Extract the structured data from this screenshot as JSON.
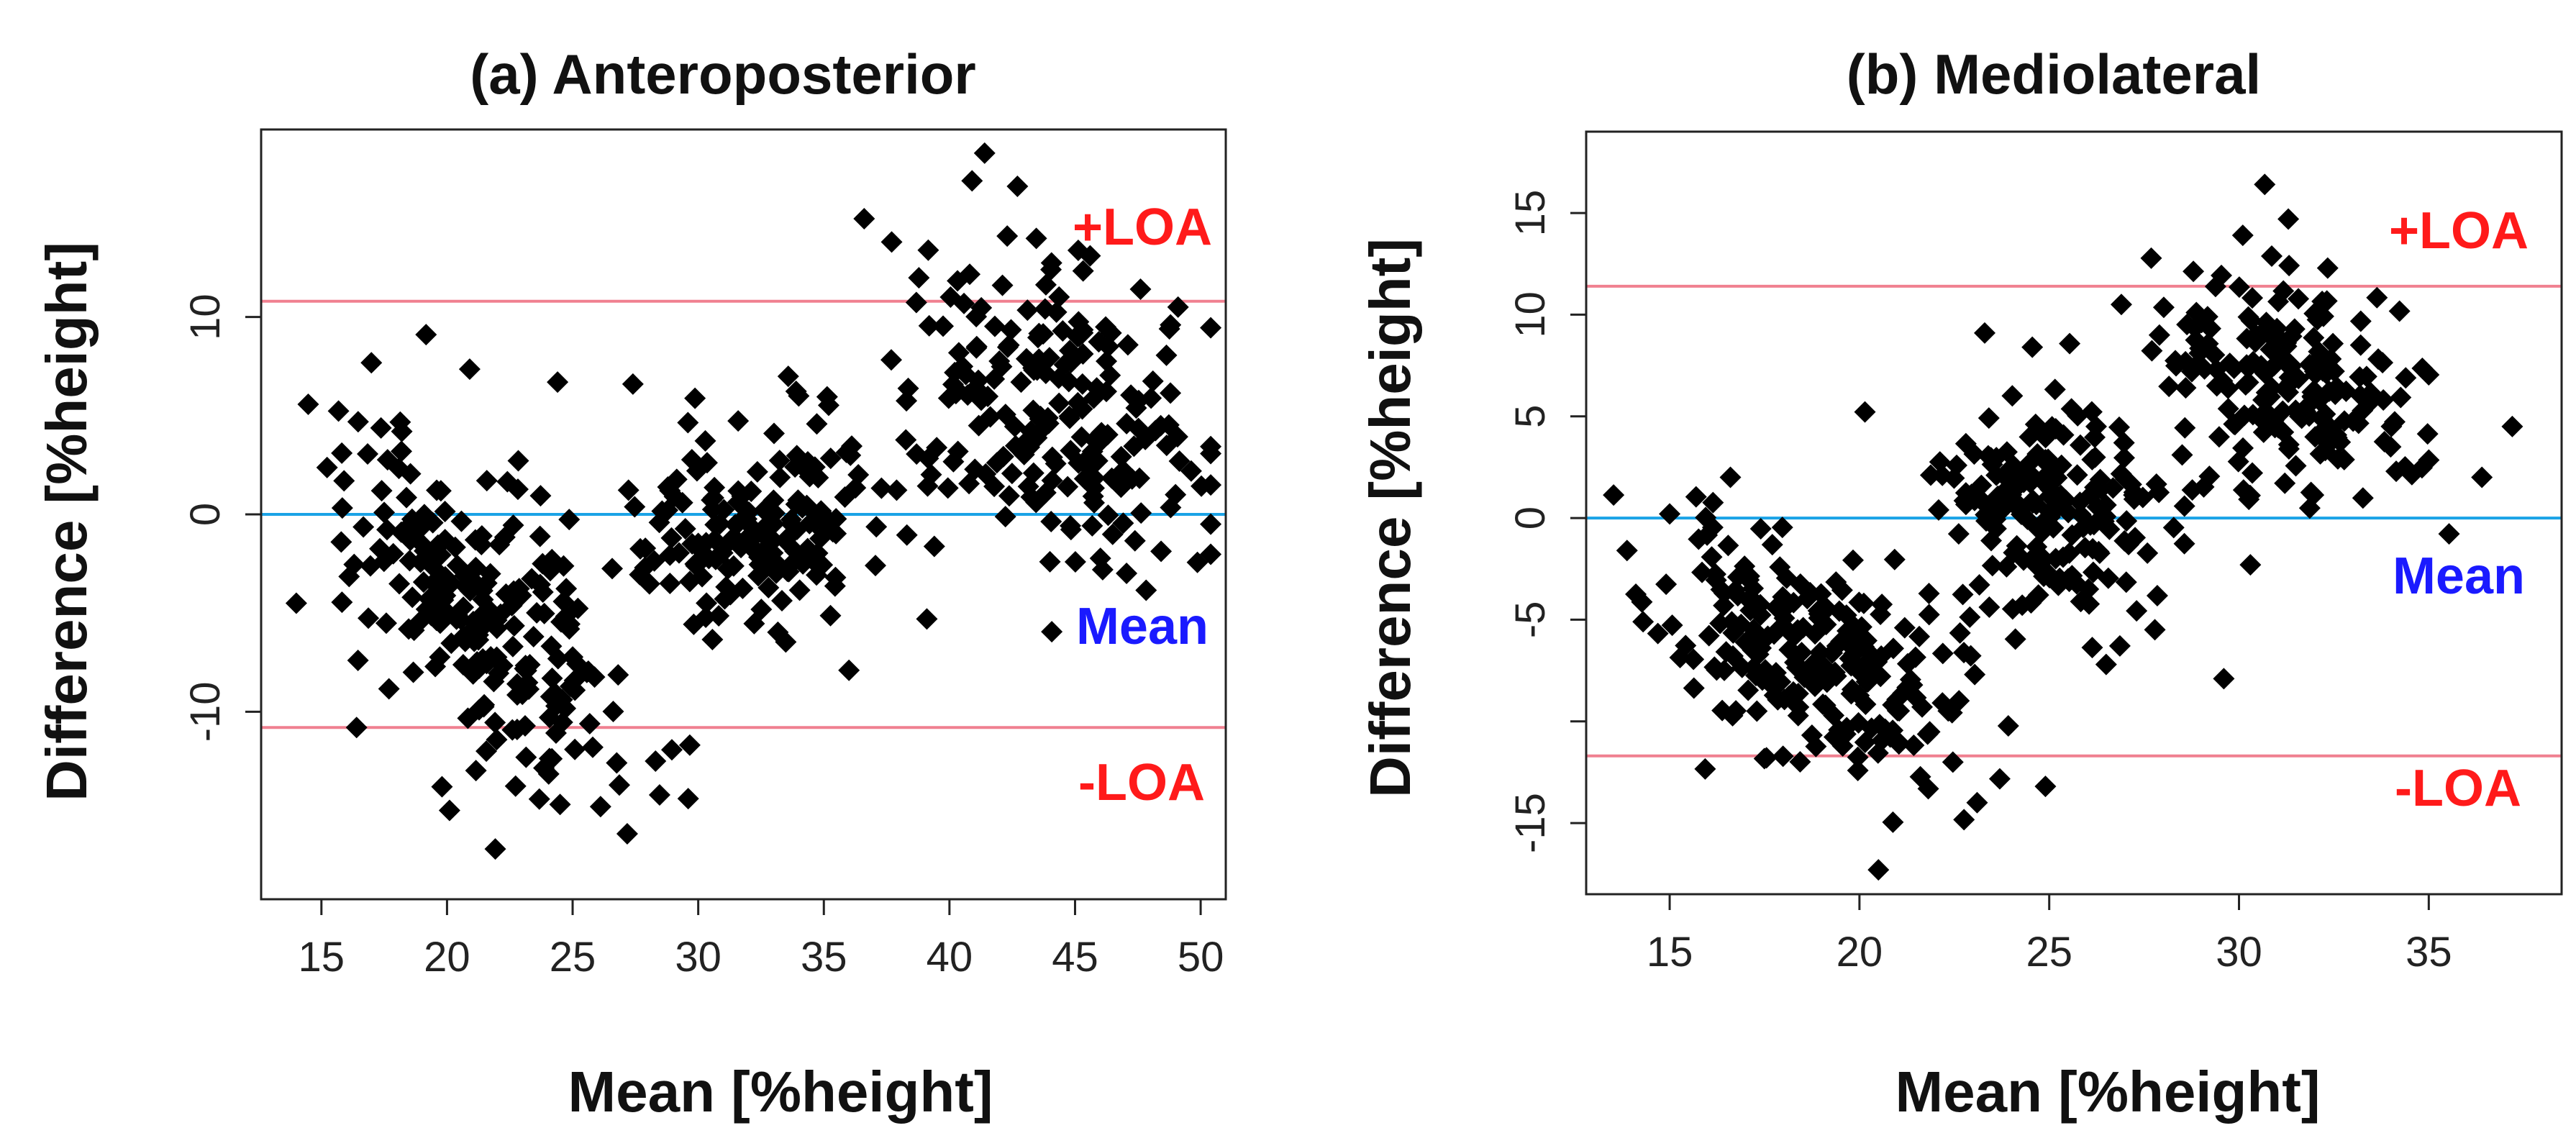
{
  "chart_data": [
    {
      "type": "scatter",
      "title": "(a) Anteroposterior",
      "xlabel": "Mean [%height]",
      "ylabel": "Difference [%height]",
      "xlim": [
        12.6,
        51.0
      ],
      "ylim": [
        -19.5,
        19.5
      ],
      "xticks": [
        15,
        20,
        25,
        30,
        35,
        40,
        45,
        50
      ],
      "yticks": [
        -10,
        0,
        10
      ],
      "grid": false,
      "lines": [
        {
          "label": "+LOA",
          "y": 10.8,
          "color": "#f08090"
        },
        {
          "label": "Mean",
          "y": 0.0,
          "color": "#1aa3e6"
        },
        {
          "label": "-LOA",
          "y": -10.8,
          "color": "#f08090"
        }
      ],
      "annotations": [
        {
          "text": "+LOA",
          "color": "#ff1a1a"
        },
        {
          "text": "Mean",
          "color": "#1a1aff"
        },
        {
          "text": "-LOA",
          "color": "#ff1a1a"
        }
      ],
      "clusters": [
        {
          "cx": 21.5,
          "cy": -5.0,
          "sx": 2.7,
          "sy": 4.4,
          "rho": -0.55,
          "n": 220
        },
        {
          "cx": 32.5,
          "cy": -0.5,
          "sx": 2.4,
          "sy": 2.7,
          "rho": 0.1,
          "n": 170
        },
        {
          "cx": 43.8,
          "cy": 5.8,
          "sx": 2.8,
          "sy": 3.8,
          "rho": -0.25,
          "n": 200
        }
      ],
      "points": [
        [
          41.4,
          18.3
        ],
        [
          40.9,
          16.9
        ],
        [
          37.7,
          13.8
        ],
        [
          42.3,
          14.1
        ],
        [
          45.6,
          13.1
        ],
        [
          14.0,
          -4.5
        ],
        [
          29.6,
          -14.4
        ],
        [
          20.1,
          -15.0
        ],
        [
          24.5,
          -14.7
        ],
        [
          19.8,
          -13.8
        ],
        [
          24.4,
          6.7
        ],
        [
          27.4,
          6.6
        ],
        [
          15.9,
          1.7
        ],
        [
          49.1,
          10.5
        ],
        [
          48.8,
          9.6
        ],
        [
          49.0,
          1.0
        ],
        [
          44.0,
          -2.4
        ],
        [
          46.1,
          -2.8
        ],
        [
          34.0,
          6.0
        ],
        [
          39.1,
          -5.3
        ],
        [
          28.3,
          -12.5
        ],
        [
          16.4,
          -10.8
        ],
        [
          25.8,
          -11.8
        ],
        [
          18.2,
          4.2
        ],
        [
          36.0,
          -7.9
        ]
      ]
    },
    {
      "type": "scatter",
      "title": "(b) Mediolateral",
      "xlabel": "Mean [%height]",
      "ylabel": "Difference [%height]",
      "xlim": [
        12.8,
        38.5
      ],
      "ylim": [
        -18.5,
        19.0
      ],
      "xticks": [
        15,
        20,
        25,
        30,
        35
      ],
      "yticks": [
        -15,
        -10,
        -5,
        0,
        5,
        10,
        15
      ],
      "ytick_labels": [
        "-15",
        "",
        "-5",
        "0",
        "5",
        "10",
        "15"
      ],
      "grid": false,
      "lines": [
        {
          "label": "+LOA",
          "y": 11.4,
          "color": "#f08090"
        },
        {
          "label": "Mean",
          "y": 0.0,
          "color": "#1aa3e6"
        },
        {
          "label": "-LOA",
          "y": -11.7,
          "color": "#f08090"
        }
      ],
      "annotations": [
        {
          "text": "+LOA",
          "color": "#ff1a1a"
        },
        {
          "text": "Mean",
          "color": "#1a1aff"
        },
        {
          "text": "-LOA",
          "color": "#ff1a1a"
        }
      ],
      "clusters": [
        {
          "cx": 18.6,
          "cy": -6.8,
          "sx": 1.9,
          "sy": 2.9,
          "rho": -0.45,
          "n": 230
        },
        {
          "cx": 25.0,
          "cy": 0.6,
          "sx": 1.4,
          "sy": 2.6,
          "rho": -0.1,
          "n": 190
        },
        {
          "cx": 31.4,
          "cy": 7.0,
          "sx": 1.8,
          "sy": 3.0,
          "rho": -0.3,
          "n": 200
        }
      ],
      "points": [
        [
          31.3,
          14.7
        ],
        [
          30.1,
          13.9
        ],
        [
          20.5,
          -17.3
        ],
        [
          23.1,
          -14.0
        ],
        [
          24.9,
          -13.2
        ],
        [
          15.0,
          0.2
        ],
        [
          16.6,
          2.0
        ],
        [
          37.2,
          4.5
        ],
        [
          36.4,
          2.0
        ],
        [
          26.9,
          10.5
        ],
        [
          29.6,
          -7.9
        ],
        [
          30.3,
          -2.3
        ],
        [
          23.3,
          9.1
        ],
        [
          14.3,
          -5.1
        ],
        [
          26.5,
          -7.2
        ]
      ]
    }
  ]
}
